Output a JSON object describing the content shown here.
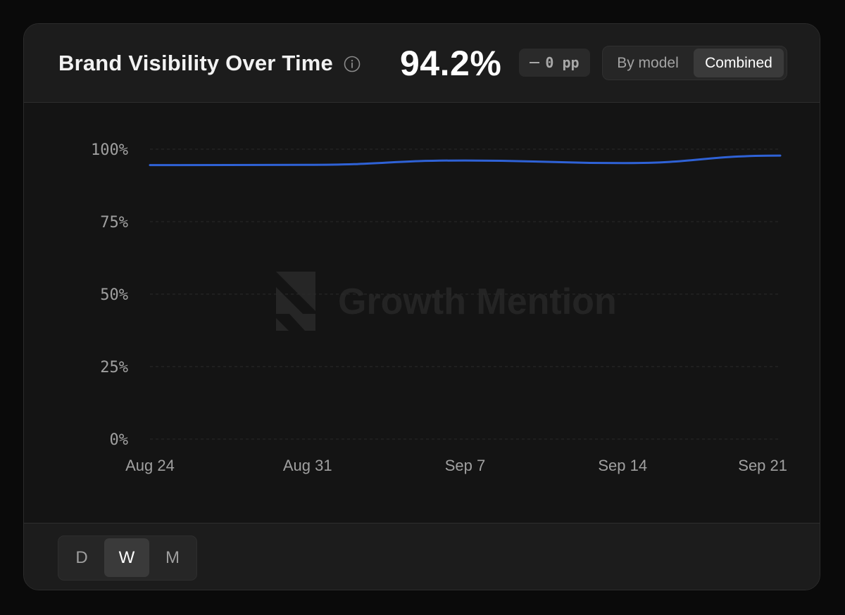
{
  "header": {
    "title": "Brand Visibility Over Time",
    "info_icon": "info-circle-icon",
    "value": "94.2%",
    "delta": "0 pp",
    "delta_icon": "minus-icon",
    "view_toggle": {
      "options": [
        "By model",
        "Combined"
      ],
      "selected": "Combined"
    }
  },
  "watermark": {
    "text": "Growth Mention",
    "icon": "growth-mention-logo-icon"
  },
  "footer": {
    "period_options": [
      "D",
      "W",
      "M"
    ],
    "selected": "W"
  },
  "colors": {
    "line": "#2f62d6",
    "background": "#141414",
    "panel": "#1c1c1c"
  },
  "chart_data": {
    "type": "line",
    "x": [
      "Aug 24",
      "Aug 31",
      "Sep 7",
      "Sep 14",
      "Sep 21"
    ],
    "series": [
      {
        "values": [
          94.5,
          94.6,
          96.1,
          95.2,
          97.8
        ]
      }
    ],
    "y_ticks": [
      "0%",
      "25%",
      "50%",
      "75%",
      "100%"
    ],
    "ylim": [
      0,
      100
    ],
    "grid": true,
    "legend": "none"
  }
}
